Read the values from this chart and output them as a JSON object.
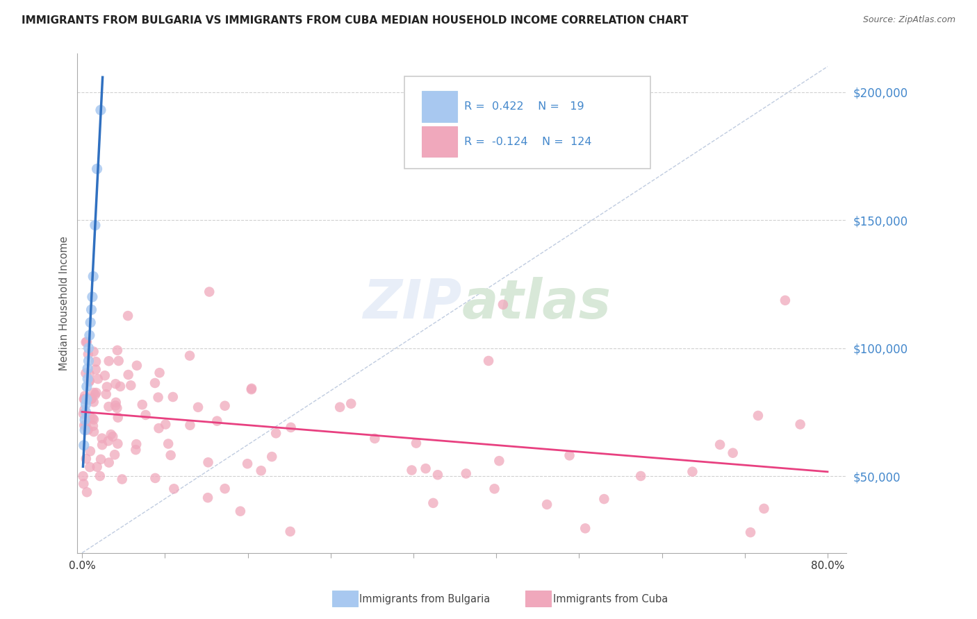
{
  "title": "IMMIGRANTS FROM BULGARIA VS IMMIGRANTS FROM CUBA MEDIAN HOUSEHOLD INCOME CORRELATION CHART",
  "source": "Source: ZipAtlas.com",
  "ylabel": "Median Household Income",
  "yticks": [
    50000,
    100000,
    150000,
    200000
  ],
  "ytick_labels": [
    "$50,000",
    "$100,000",
    "$150,000",
    "$200,000"
  ],
  "xlim": [
    -0.005,
    0.82
  ],
  "ylim": [
    20000,
    215000
  ],
  "r_bulgaria": 0.422,
  "n_bulgaria": 19,
  "r_cuba": -0.124,
  "n_cuba": 124,
  "color_bulgaria": "#a8c8f0",
  "color_cuba": "#f0a8bc",
  "line_color_bulgaria": "#3070c0",
  "line_color_cuba": "#e84080",
  "tick_color": "#4488cc",
  "bg_color": "#ffffff",
  "grid_color": "#d0d0d0",
  "watermark_color": "#e8eef8",
  "bul_x": [
    0.002,
    0.003,
    0.003,
    0.004,
    0.004,
    0.005,
    0.005,
    0.006,
    0.006,
    0.007,
    0.007,
    0.008,
    0.009,
    0.01,
    0.011,
    0.012,
    0.014,
    0.016,
    0.02
  ],
  "bul_y": [
    62000,
    68000,
    72000,
    75000,
    78000,
    80000,
    85000,
    88000,
    92000,
    95000,
    100000,
    105000,
    110000,
    115000,
    120000,
    128000,
    148000,
    170000,
    193000
  ]
}
